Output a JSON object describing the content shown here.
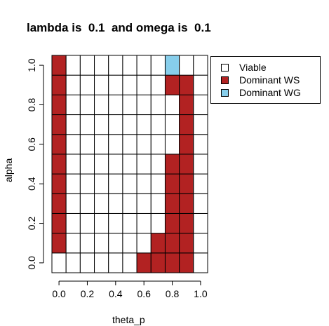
{
  "chart_data": {
    "type": "heatmap",
    "title": "lambda is  0.1  and omega is  0.1",
    "xlabel": "theta_p",
    "ylabel": "alpha",
    "xlim": [
      -0.05,
      1.05
    ],
    "ylim": [
      -0.05,
      1.05
    ],
    "x_ticks": [
      "0.0",
      "0.2",
      "0.4",
      "0.6",
      "0.8",
      "1.0"
    ],
    "y_ticks": [
      "0.0",
      "0.2",
      "0.4",
      "0.6",
      "0.8",
      "1.0"
    ],
    "x_centers": [
      0.0,
      0.1,
      0.2,
      0.3,
      0.4,
      0.5,
      0.6,
      0.7,
      0.8,
      0.9,
      1.0
    ],
    "y_centers": [
      0.0,
      0.1,
      0.2,
      0.3,
      0.4,
      0.5,
      0.6,
      0.7,
      0.8,
      0.9,
      1.0
    ],
    "note_columns": "cells lists columns left (theta_p=0.0) to right (theta_p=1.0); each column lists rows bottom (alpha=0.0) to top (alpha=1.0)",
    "categories": [
      "Viable",
      "Dominant WS",
      "Dominant WG"
    ],
    "colors": {
      "Viable": "#ffffff",
      "Dominant WS": "#b22222",
      "Dominant WG": "#87ceeb"
    },
    "cells": [
      [
        "Viable",
        "Dominant WS",
        "Dominant WS",
        "Dominant WS",
        "Dominant WS",
        "Dominant WS",
        "Dominant WS",
        "Dominant WS",
        "Dominant WS",
        "Dominant WS",
        "Dominant WS"
      ],
      [
        "Viable",
        "Viable",
        "Viable",
        "Viable",
        "Viable",
        "Viable",
        "Viable",
        "Viable",
        "Viable",
        "Viable",
        "Viable"
      ],
      [
        "Viable",
        "Viable",
        "Viable",
        "Viable",
        "Viable",
        "Viable",
        "Viable",
        "Viable",
        "Viable",
        "Viable",
        "Viable"
      ],
      [
        "Viable",
        "Viable",
        "Viable",
        "Viable",
        "Viable",
        "Viable",
        "Viable",
        "Viable",
        "Viable",
        "Viable",
        "Viable"
      ],
      [
        "Viable",
        "Viable",
        "Viable",
        "Viable",
        "Viable",
        "Viable",
        "Viable",
        "Viable",
        "Viable",
        "Viable",
        "Viable"
      ],
      [
        "Viable",
        "Viable",
        "Viable",
        "Viable",
        "Viable",
        "Viable",
        "Viable",
        "Viable",
        "Viable",
        "Viable",
        "Viable"
      ],
      [
        "Dominant WS",
        "Viable",
        "Viable",
        "Viable",
        "Viable",
        "Viable",
        "Viable",
        "Viable",
        "Viable",
        "Viable",
        "Viable"
      ],
      [
        "Dominant WS",
        "Dominant WS",
        "Viable",
        "Viable",
        "Viable",
        "Viable",
        "Viable",
        "Viable",
        "Viable",
        "Viable",
        "Viable"
      ],
      [
        "Dominant WS",
        "Dominant WS",
        "Dominant WS",
        "Dominant WS",
        "Dominant WS",
        "Dominant WS",
        "Viable",
        "Viable",
        "Viable",
        "Dominant WS",
        "Dominant WG"
      ],
      [
        "Dominant WS",
        "Dominant WS",
        "Dominant WS",
        "Dominant WS",
        "Dominant WS",
        "Dominant WS",
        "Dominant WS",
        "Dominant WS",
        "Dominant WS",
        "Dominant WS",
        "Viable"
      ],
      [
        "Viable",
        "Viable",
        "Viable",
        "Viable",
        "Viable",
        "Viable",
        "Viable",
        "Viable",
        "Viable",
        "Viable",
        "Viable"
      ]
    ],
    "legend_position": "top-right"
  }
}
